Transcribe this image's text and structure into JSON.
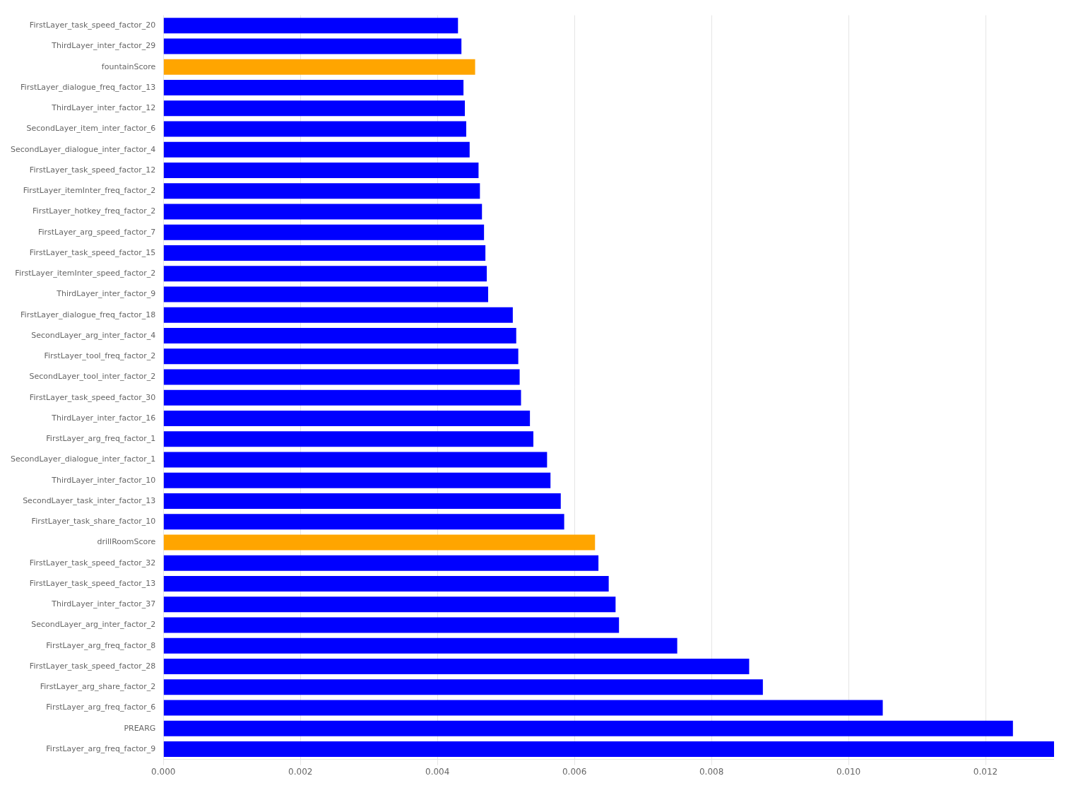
{
  "chart_data": {
    "type": "bar",
    "orientation": "horizontal",
    "categories": [
      "FirstLayer_task_speed_factor_20",
      "ThirdLayer_inter_factor_29",
      "fountainScore",
      "FirstLayer_dialogue_freq_factor_13",
      "ThirdLayer_inter_factor_12",
      "SecondLayer_item_inter_factor_6",
      "SecondLayer_dialogue_inter_factor_4",
      "FirstLayer_task_speed_factor_12",
      "FirstLayer_itemInter_freq_factor_2",
      "FirstLayer_hotkey_freq_factor_2",
      "FirstLayer_arg_speed_factor_7",
      "FirstLayer_task_speed_factor_15",
      "FirstLayer_itemInter_speed_factor_2",
      "ThirdLayer_inter_factor_9",
      "FirstLayer_dialogue_freq_factor_18",
      "SecondLayer_arg_inter_factor_4",
      "FirstLayer_tool_freq_factor_2",
      "SecondLayer_tool_inter_factor_2",
      "FirstLayer_task_speed_factor_30",
      "ThirdLayer_inter_factor_16",
      "FirstLayer_arg_freq_factor_1",
      "SecondLayer_dialogue_inter_factor_1",
      "ThirdLayer_inter_factor_10",
      "SecondLayer_task_inter_factor_13",
      "FirstLayer_task_share_factor_10",
      "drillRoomScore",
      "FirstLayer_task_speed_factor_32",
      "FirstLayer_task_speed_factor_13",
      "ThirdLayer_inter_factor_37",
      "SecondLayer_arg_inter_factor_2",
      "FirstLayer_arg_freq_factor_8",
      "FirstLayer_task_speed_factor_28",
      "FirstLayer_arg_share_factor_2",
      "FirstLayer_arg_freq_factor_6",
      "PREARG",
      "FirstLayer_arg_freq_factor_9"
    ],
    "values": [
      0.0043,
      0.00435,
      0.00455,
      0.00438,
      0.0044,
      0.00442,
      0.00447,
      0.0046,
      0.00462,
      0.00465,
      0.00468,
      0.0047,
      0.00472,
      0.00474,
      0.0051,
      0.00515,
      0.00518,
      0.0052,
      0.00522,
      0.00535,
      0.0054,
      0.0056,
      0.00565,
      0.0058,
      0.00585,
      0.0063,
      0.00635,
      0.0065,
      0.0066,
      0.00665,
      0.0075,
      0.00855,
      0.00875,
      0.0105,
      0.0124,
      0.013
    ],
    "colors": [
      "#0000ff",
      "#0000ff",
      "#ffa500",
      "#0000ff",
      "#0000ff",
      "#0000ff",
      "#0000ff",
      "#0000ff",
      "#0000ff",
      "#0000ff",
      "#0000ff",
      "#0000ff",
      "#0000ff",
      "#0000ff",
      "#0000ff",
      "#0000ff",
      "#0000ff",
      "#0000ff",
      "#0000ff",
      "#0000ff",
      "#0000ff",
      "#0000ff",
      "#0000ff",
      "#0000ff",
      "#0000ff",
      "#ffa500",
      "#0000ff",
      "#0000ff",
      "#0000ff",
      "#0000ff",
      "#0000ff",
      "#0000ff",
      "#0000ff",
      "#0000ff",
      "#0000ff",
      "#0000ff"
    ],
    "xlim": [
      0,
      0.013
    ],
    "xticks": [
      {
        "value": 0,
        "label": "0.000"
      },
      {
        "value": 0.002,
        "label": "0.002"
      },
      {
        "value": 0.004,
        "label": "0.004"
      },
      {
        "value": 0.006,
        "label": "0.006"
      },
      {
        "value": 0.008,
        "label": "0.008"
      },
      {
        "value": 0.01,
        "label": "0.010"
      },
      {
        "value": 0.012,
        "label": "0.012"
      }
    ],
    "grid": true
  }
}
